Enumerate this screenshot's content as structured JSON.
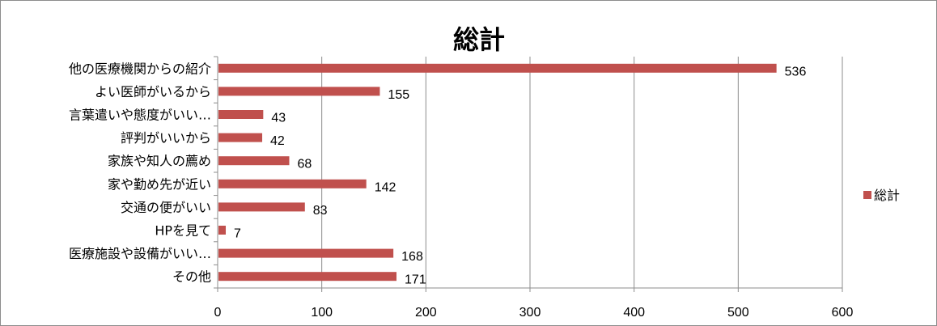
{
  "chart_data": {
    "type": "bar",
    "orientation": "horizontal",
    "title": "総計",
    "categories": [
      "他の医療機関からの紹介",
      "よい医師がいるから",
      "言葉遣いや態度がいい…",
      "評判がいいから",
      "家族や知人の薦め",
      "家や勤め先が近い",
      "交通の便がいい",
      "HPを見て",
      "医療施設や設備がいい…",
      "その他"
    ],
    "series": [
      {
        "name": "総計",
        "color": "#c0504d",
        "values": [
          536,
          155,
          43,
          42,
          68,
          142,
          83,
          7,
          168,
          171
        ]
      }
    ],
    "xlim": [
      0,
      600
    ],
    "xticks": [
      "0",
      "100",
      "200",
      "300",
      "400",
      "500",
      "600"
    ],
    "data_labels": true,
    "grid": "vertical",
    "legend": "right"
  }
}
